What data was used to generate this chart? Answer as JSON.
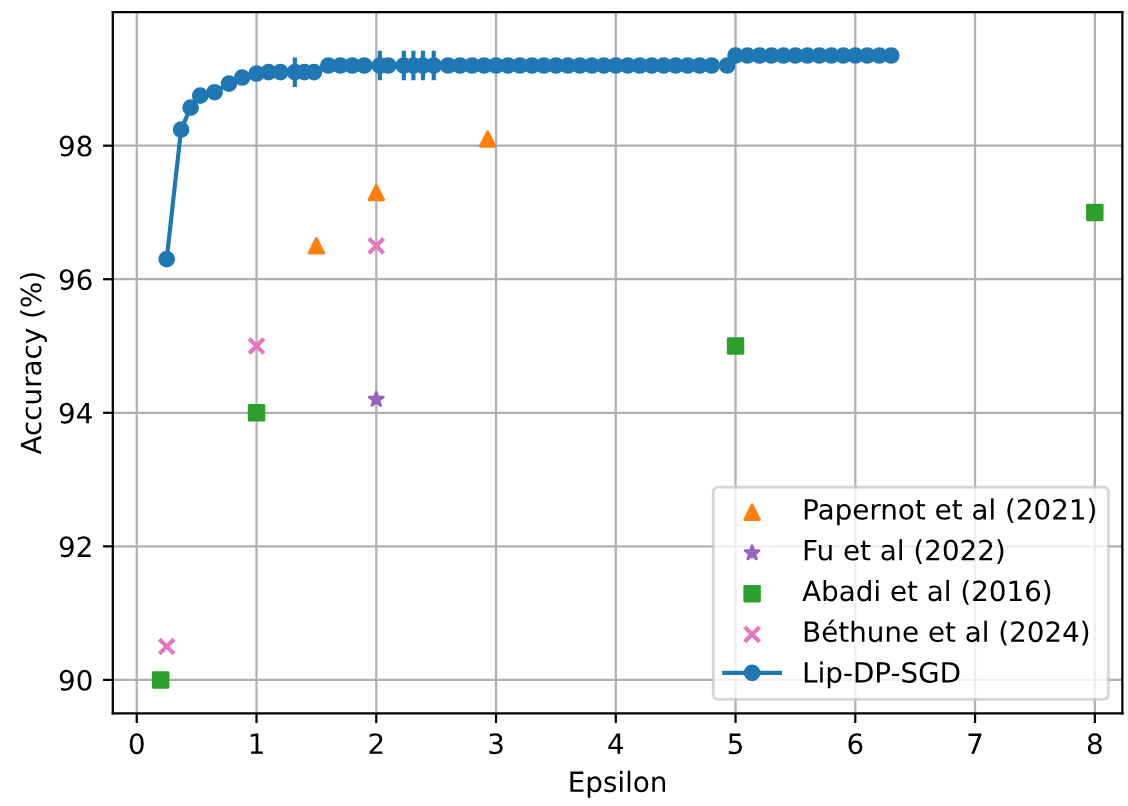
{
  "chart_data": {
    "type": "scatter",
    "xlabel": "Epsilon",
    "ylabel": "Accuracy (%)",
    "xlim": [
      -0.2,
      8.23
    ],
    "ylim": [
      89.5,
      100
    ],
    "xticks": [
      0,
      1,
      2,
      3,
      4,
      5,
      6,
      7,
      8
    ],
    "yticks": [
      90,
      92,
      94,
      96,
      98
    ],
    "grid": true,
    "legend": "bottom right",
    "series": [
      {
        "name": "Papernot et al (2021)",
        "marker": "triangle",
        "color": "#ff7f0e",
        "x": [
          1.5,
          2.0,
          2.93
        ],
        "values": [
          96.5,
          97.3,
          98.1
        ]
      },
      {
        "name": "Fu et al (2022)",
        "marker": "star",
        "color": "#9467bd",
        "x": [
          2.0
        ],
        "values": [
          94.2
        ]
      },
      {
        "name": "Abadi et al (2016)",
        "marker": "square",
        "color": "#2ca02c",
        "x": [
          0.2,
          1.0,
          5.0,
          8.0
        ],
        "values": [
          90.0,
          94.0,
          95.0,
          97.0
        ]
      },
      {
        "name": "Béthune et al (2024)",
        "marker": "cross",
        "color": "#e377c2",
        "x": [
          0.25,
          1.0,
          2.0
        ],
        "values": [
          90.5,
          95.0,
          96.5
        ]
      },
      {
        "name": "Lip-DP-SGD",
        "type": "line",
        "marker": "circle",
        "line_style": "solid",
        "color": "#1f77b4",
        "x": [
          0.25,
          0.37,
          0.45,
          0.53,
          0.65,
          0.77,
          0.88,
          1.0,
          1.1,
          1.2,
          1.32,
          1.4,
          1.48,
          1.6,
          1.7,
          1.8,
          1.9,
          2.03,
          2.1,
          2.23,
          2.31,
          2.39,
          2.48,
          2.6,
          2.7,
          2.8,
          2.9,
          3.0,
          3.1,
          3.2,
          3.3,
          3.4,
          3.5,
          3.6,
          3.7,
          3.8,
          3.9,
          4.0,
          4.1,
          4.2,
          4.3,
          4.4,
          4.5,
          4.6,
          4.7,
          4.8,
          4.93,
          5.0,
          5.1,
          5.2,
          5.3,
          5.4,
          5.5,
          5.6,
          5.7,
          5.8,
          5.9,
          6.0,
          6.1,
          6.2,
          6.3
        ],
        "values": [
          96.3,
          98.24,
          98.57,
          98.75,
          98.8,
          98.93,
          99.02,
          99.08,
          99.1,
          99.1,
          99.1,
          99.1,
          99.1,
          99.2,
          99.2,
          99.2,
          99.2,
          99.2,
          99.2,
          99.2,
          99.2,
          99.2,
          99.2,
          99.2,
          99.2,
          99.2,
          99.2,
          99.2,
          99.2,
          99.2,
          99.2,
          99.2,
          99.2,
          99.2,
          99.2,
          99.2,
          99.2,
          99.2,
          99.2,
          99.2,
          99.2,
          99.2,
          99.2,
          99.2,
          99.2,
          99.2,
          99.2,
          99.35,
          99.35,
          99.35,
          99.35,
          99.35,
          99.35,
          99.35,
          99.35,
          99.35,
          99.35,
          99.35,
          99.35,
          99.35,
          99.35
        ],
        "errors": [
          null,
          null,
          null,
          null,
          null,
          null,
          null,
          null,
          null,
          null,
          0.22,
          null,
          null,
          null,
          null,
          null,
          null,
          0.22,
          null,
          0.22,
          0.22,
          0.22,
          0.22,
          null,
          null,
          null,
          null,
          null,
          null,
          null,
          null,
          null,
          null,
          null,
          null,
          null,
          null,
          null,
          null,
          null,
          null,
          null,
          null,
          null,
          null,
          null,
          null,
          null,
          null,
          null,
          null,
          null,
          null,
          null,
          null,
          null,
          null,
          null,
          null,
          null,
          null
        ]
      }
    ]
  }
}
